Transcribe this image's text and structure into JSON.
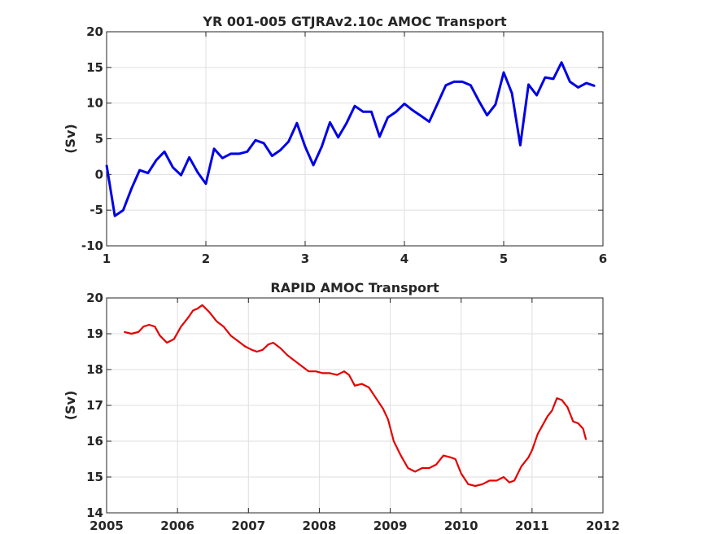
{
  "chart_data": [
    {
      "type": "line",
      "title": "YR 001-005 GTJRAv2.10c AMOC Transport",
      "xlabel": "",
      "ylabel": "(Sv)",
      "xlim": [
        1,
        6
      ],
      "ylim": [
        -10,
        20
      ],
      "xticks": [
        "1",
        "2",
        "3",
        "4",
        "5",
        "6"
      ],
      "yticks": [
        "-10",
        "-5",
        "0",
        "5",
        "10",
        "15",
        "20"
      ],
      "grid": true,
      "color": "#0000e6",
      "series": [
        {
          "x": [
            1.0,
            1.083,
            1.167,
            1.25,
            1.333,
            1.417,
            1.5,
            1.583,
            1.667,
            1.75,
            1.833,
            1.917,
            2.0,
            2.083,
            2.167,
            2.25,
            2.333,
            2.417,
            2.5,
            2.583,
            2.667,
            2.75,
            2.833,
            2.917,
            3.0,
            3.083,
            3.167,
            3.25,
            3.333,
            3.417,
            3.5,
            3.583,
            3.667,
            3.75,
            3.833,
            3.917,
            4.0,
            4.083,
            4.167,
            4.25,
            4.333,
            4.417,
            4.5,
            4.583,
            4.667,
            4.75,
            4.833,
            4.917,
            5.0,
            5.083,
            5.167,
            5.25,
            5.333,
            5.417,
            5.5,
            5.583,
            5.667,
            5.75,
            5.833,
            5.917
          ],
          "y": [
            1.3,
            -5.8,
            -5.0,
            -2.0,
            0.6,
            0.2,
            2.0,
            3.2,
            1.0,
            -0.1,
            2.4,
            0.3,
            -1.3,
            3.6,
            2.3,
            2.9,
            2.9,
            3.2,
            4.8,
            4.4,
            2.6,
            3.4,
            4.6,
            7.2,
            3.9,
            1.3,
            3.9,
            7.3,
            5.2,
            7.2,
            9.6,
            8.8,
            8.8,
            5.3,
            8.0,
            8.8,
            9.9,
            9.0,
            8.2,
            7.4,
            9.9,
            12.5,
            13.0,
            13.0,
            12.5,
            10.3,
            8.3,
            9.8,
            14.3,
            11.4,
            4.1,
            12.6,
            11.1,
            13.6,
            13.4,
            15.7,
            13.0,
            12.2,
            12.8,
            12.4
          ]
        }
      ]
    },
    {
      "type": "line",
      "title": "RAPID AMOC Transport",
      "xlabel": "",
      "ylabel": "(Sv)",
      "xlim": [
        2005,
        2012
      ],
      "ylim": [
        14,
        20
      ],
      "xticks": [
        "2005",
        "2006",
        "2007",
        "2008",
        "2009",
        "2010",
        "2011",
        "2012"
      ],
      "yticks": [
        "14",
        "15",
        "16",
        "17",
        "18",
        "19",
        "20"
      ],
      "grid": true,
      "color": "#e60000",
      "series": [
        {
          "x": [
            2005.25,
            2005.35,
            2005.45,
            2005.52,
            2005.6,
            2005.68,
            2005.75,
            2005.85,
            2005.95,
            2006.05,
            2006.15,
            2006.22,
            2006.28,
            2006.35,
            2006.45,
            2006.55,
            2006.65,
            2006.75,
            2006.85,
            2006.95,
            2007.05,
            2007.12,
            2007.2,
            2007.28,
            2007.35,
            2007.45,
            2007.55,
            2007.65,
            2007.75,
            2007.85,
            2007.95,
            2008.05,
            2008.15,
            2008.25,
            2008.35,
            2008.42,
            2008.5,
            2008.6,
            2008.7,
            2008.8,
            2008.9,
            2008.97,
            2009.05,
            2009.15,
            2009.25,
            2009.35,
            2009.45,
            2009.55,
            2009.65,
            2009.75,
            2009.85,
            2009.92,
            2010.0,
            2010.1,
            2010.2,
            2010.3,
            2010.4,
            2010.5,
            2010.6,
            2010.68,
            2010.75,
            2010.85,
            2010.95,
            2011.0,
            2011.08,
            2011.15,
            2011.22,
            2011.28,
            2011.35,
            2011.42,
            2011.5,
            2011.58,
            2011.65,
            2011.72,
            2011.76
          ],
          "y": [
            19.05,
            19.0,
            19.05,
            19.2,
            19.25,
            19.2,
            18.95,
            18.75,
            18.85,
            19.2,
            19.45,
            19.65,
            19.7,
            19.8,
            19.6,
            19.35,
            19.2,
            18.95,
            18.8,
            18.65,
            18.55,
            18.5,
            18.55,
            18.7,
            18.75,
            18.6,
            18.4,
            18.25,
            18.1,
            17.95,
            17.95,
            17.9,
            17.9,
            17.85,
            17.95,
            17.85,
            17.55,
            17.6,
            17.5,
            17.2,
            16.9,
            16.6,
            16.0,
            15.6,
            15.25,
            15.15,
            15.25,
            15.25,
            15.35,
            15.6,
            15.55,
            15.5,
            15.1,
            14.8,
            14.75,
            14.8,
            14.9,
            14.9,
            15.0,
            14.85,
            14.9,
            15.3,
            15.55,
            15.75,
            16.2,
            16.45,
            16.7,
            16.85,
            17.2,
            17.15,
            16.95,
            16.55,
            16.5,
            16.35,
            16.05
          ]
        }
      ]
    }
  ]
}
